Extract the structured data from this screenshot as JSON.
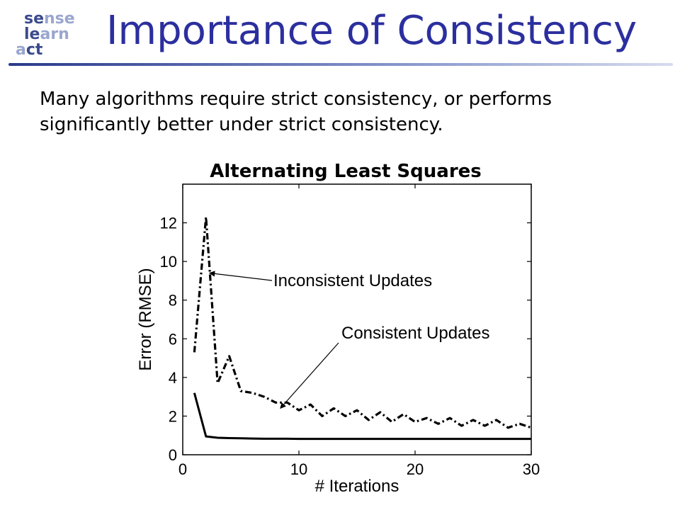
{
  "slide": {
    "title": "Importance of Consistency",
    "body": "Many algorithms require strict consistency, or performs significantly better under strict consistency."
  },
  "logo": {
    "line1_dark": "se",
    "line1_light": "nse",
    "line2_dark": "le",
    "line2_light": "arn",
    "line3_light": "a",
    "line3_dark": "ct"
  },
  "colors": {
    "title": "#2b2f9e",
    "logo_dark": "#3a4a8c",
    "logo_light": "#9aa6cf",
    "series": "#000000"
  },
  "chart_data": {
    "type": "line",
    "title": "Alternating Least Squares",
    "xlabel": "# Iterations",
    "ylabel": "Error (RMSE)",
    "xlim": [
      0,
      30
    ],
    "ylim": [
      0,
      14
    ],
    "xticks": [
      0,
      10,
      20,
      30
    ],
    "yticks": [
      0,
      2,
      4,
      6,
      8,
      10,
      12
    ],
    "grid": false,
    "series": [
      {
        "name": "Inconsistent Updates",
        "style": "dash-dot",
        "x": [
          1,
          2,
          3,
          4,
          5,
          6,
          7,
          8,
          9,
          10,
          11,
          12,
          13,
          14,
          15,
          16,
          17,
          18,
          19,
          20,
          21,
          22,
          23,
          24,
          25,
          26,
          27,
          28,
          29,
          30
        ],
        "y": [
          5.3,
          12.3,
          3.7,
          5.1,
          3.3,
          3.2,
          3.0,
          2.7,
          2.7,
          2.3,
          2.6,
          2.0,
          2.4,
          2.0,
          2.3,
          1.8,
          2.2,
          1.7,
          2.1,
          1.7,
          1.9,
          1.6,
          1.9,
          1.5,
          1.8,
          1.5,
          1.8,
          1.4,
          1.6,
          1.4
        ]
      },
      {
        "name": "Consistent Updates",
        "style": "solid",
        "x": [
          1,
          2,
          3,
          4,
          5,
          6,
          7,
          8,
          9,
          10,
          11,
          12,
          13,
          14,
          15,
          16,
          17,
          18,
          19,
          20,
          21,
          22,
          23,
          24,
          25,
          26,
          27,
          28,
          29,
          30
        ],
        "y": [
          3.2,
          0.95,
          0.88,
          0.86,
          0.85,
          0.84,
          0.83,
          0.83,
          0.83,
          0.82,
          0.82,
          0.82,
          0.82,
          0.82,
          0.82,
          0.82,
          0.82,
          0.82,
          0.82,
          0.82,
          0.82,
          0.82,
          0.82,
          0.82,
          0.82,
          0.82,
          0.82,
          0.82,
          0.82,
          0.82
        ]
      }
    ],
    "annotations": [
      {
        "text": "Inconsistent Updates",
        "target_x": 2.3,
        "target_y": 9.4
      },
      {
        "text": "Consistent Updates",
        "target_x": 8.4,
        "target_y": 2.4
      }
    ]
  }
}
